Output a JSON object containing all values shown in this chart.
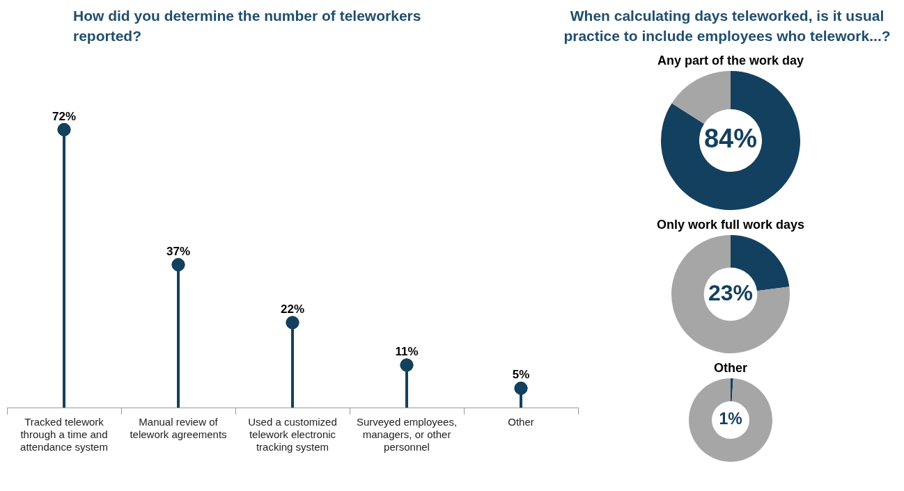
{
  "chart_data": [
    {
      "type": "lollipop",
      "title": "How did you determine the number of teleworkers reported?",
      "categories": [
        "Tracked telework through a time and attendance system",
        "Manual review of telework agreements",
        "Used a customized telework electronic tracking system",
        "Surveyed employees, managers, or other personnel",
        "Other"
      ],
      "values": [
        72,
        37,
        22,
        11,
        5
      ],
      "value_labels": [
        "72%",
        "37%",
        "22%",
        "11%",
        "5%"
      ],
      "color": "#14405f",
      "tick_labels": "x"
    },
    {
      "type": "donut",
      "title": "When calculating days teleworked, is it usual practice to include employees who telework...?",
      "subtitle": "Any part of the work day",
      "categories": [
        null,
        null
      ],
      "values": [
        84,
        16
      ],
      "colors": [
        "#14405f",
        "#a6a6a6"
      ],
      "value_labels": [
        "84%",
        null
      ]
    },
    {
      "type": "donut",
      "title": "Only work full work days",
      "categories": [
        null,
        null
      ],
      "values": [
        23,
        77
      ],
      "colors": [
        "#14405f",
        "#a6a6a6"
      ],
      "value_labels": [
        "23%",
        null
      ]
    },
    {
      "type": "donut",
      "title": "Other",
      "categories": [
        null,
        null
      ],
      "values": [
        1,
        99
      ],
      "colors": [
        "#14405f",
        "#a6a6a6"
      ],
      "value_labels": [
        "1%",
        null
      ]
    }
  ]
}
